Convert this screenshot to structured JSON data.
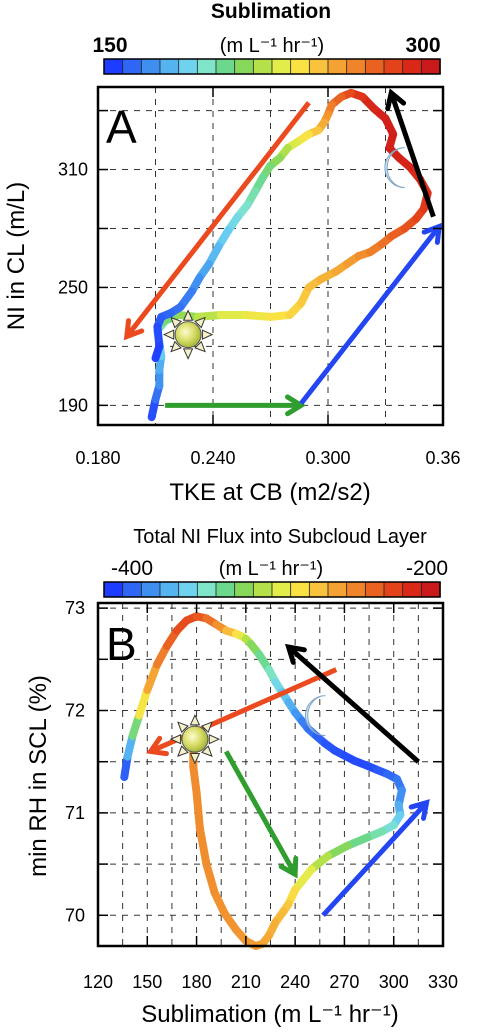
{
  "chart_data": [
    {
      "type": "line",
      "panel_label": "A",
      "colorbar": {
        "title": "Sublimation",
        "units": "(m L⁻¹ hr⁻¹)",
        "min_label": "150",
        "max_label": "300",
        "range": [
          150,
          300
        ],
        "colors": [
          "#1e3cff",
          "#2f66f5",
          "#3e8ff0",
          "#55b4f0",
          "#6fd3f0",
          "#7fe4c8",
          "#6cd88e",
          "#86d85a",
          "#b4e04a",
          "#e2ec4a",
          "#fbe244",
          "#f8c23c",
          "#f3a233",
          "#ef842b",
          "#ea6222",
          "#e3431b",
          "#d92818",
          "#c81a1a"
        ]
      },
      "xlabel": "TKE at CB (m2/s2)",
      "ylabel": "NI in CL (m/L)",
      "xlim": [
        0.18,
        0.36
      ],
      "ylim": [
        180,
        352
      ],
      "xticks": [
        0.18,
        0.24,
        0.3,
        0.36
      ],
      "xtick_labels": [
        "0.180",
        "0.240",
        "0.300",
        "0.36"
      ],
      "yticks": [
        190,
        250,
        310
      ],
      "ytick_labels": [
        "190",
        "250",
        "310"
      ],
      "ymidticks": [
        220,
        280,
        340
      ],
      "grid": true,
      "trajectory": {
        "x": [
          0.208,
          0.21,
          0.212,
          0.212,
          0.213,
          0.212,
          0.211,
          0.215,
          0.222,
          0.232,
          0.244,
          0.257,
          0.27,
          0.28,
          0.286,
          0.29,
          0.296,
          0.304,
          0.31,
          0.316,
          0.322,
          0.328,
          0.333,
          0.34,
          0.346,
          0.35,
          0.352,
          0.348,
          0.343,
          0.337,
          0.332,
          0.334,
          0.33,
          0.324,
          0.318,
          0.312,
          0.307,
          0.302,
          0.3,
          0.298,
          0.295,
          0.29,
          0.284,
          0.279,
          0.275,
          0.27,
          0.266,
          0.262,
          0.258,
          0.253,
          0.248,
          0.243,
          0.238,
          0.233,
          0.229,
          0.223,
          0.218,
          0.213,
          0.211,
          0.212,
          0.21
        ],
        "y": [
          184,
          193,
          200,
          208,
          215,
          222,
          228,
          233,
          236,
          235,
          236,
          236,
          235,
          236,
          242,
          250,
          254,
          258,
          262,
          266,
          268,
          272,
          276,
          280,
          285,
          290,
          298,
          305,
          311,
          316,
          321,
          328,
          336,
          341,
          347,
          349,
          347,
          343,
          338,
          334,
          330,
          328,
          324,
          321,
          316,
          312,
          306,
          299,
          292,
          286,
          279,
          271,
          262,
          255,
          248,
          240,
          237,
          235,
          230,
          220,
          214
        ],
        "c": [
          150,
          158,
          165,
          172,
          178,
          188,
          195,
          203,
          210,
          218,
          226,
          232,
          236,
          240,
          244,
          247,
          250,
          253,
          256,
          260,
          264,
          268,
          272,
          276,
          280,
          284,
          288,
          290,
          292,
          294,
          295,
          296,
          296,
          294,
          290,
          284,
          276,
          270,
          262,
          256,
          250,
          242,
          232,
          224,
          216,
          210,
          204,
          200,
          196,
          190,
          186,
          180,
          176,
          170,
          166,
          162,
          160,
          158,
          155,
          152,
          150
        ]
      },
      "arrows": [
        {
          "color": "#ea4a1e",
          "from": [
            0.29,
            344
          ],
          "to": [
            0.195,
            225
          ]
        },
        {
          "color": "#2f9e2f",
          "from": [
            0.215,
            190
          ],
          "to": [
            0.286,
            190
          ]
        },
        {
          "color": "#2446f2",
          "from": [
            0.286,
            191
          ],
          "to": [
            0.358,
            281
          ]
        },
        {
          "color": "#000000",
          "from": [
            0.355,
            286
          ],
          "to": [
            0.333,
            349
          ]
        }
      ],
      "sun": {
        "x": 0.227,
        "y": 226
      },
      "moon": {
        "x": 0.338,
        "y": 311
      }
    },
    {
      "type": "line",
      "panel_label": "B",
      "colorbar": {
        "title": "Total NI Flux into Subcloud Layer",
        "units": "(m L⁻¹ hr⁻¹)",
        "min_label": "-400",
        "max_label": "-200",
        "range": [
          -400,
          -200
        ],
        "colors": [
          "#1e3cff",
          "#2f66f5",
          "#3e8ff0",
          "#55b4f0",
          "#6fd3f0",
          "#7fe4c8",
          "#6cd88e",
          "#86d85a",
          "#b4e04a",
          "#e2ec4a",
          "#fbe244",
          "#f8c23c",
          "#f3a233",
          "#ef842b",
          "#ea6222",
          "#e3431b",
          "#d92818",
          "#c81a1a"
        ]
      },
      "xlabel": "Sublimation (m L⁻¹ hr⁻¹)",
      "ylabel": "min RH in SCL (%)",
      "xlim": [
        120,
        330
      ],
      "ylim": [
        69.7,
        73.05
      ],
      "xticks": [
        120,
        150,
        180,
        210,
        240,
        270,
        300,
        330
      ],
      "xtick_labels": [
        "120",
        "150",
        "180",
        "210",
        "240",
        "270",
        "300",
        "330"
      ],
      "yticks": [
        70,
        71,
        72,
        73
      ],
      "ytick_labels": [
        "70",
        "71",
        "72",
        "73"
      ],
      "ymidticks": [
        70.5,
        71.5,
        72.5
      ],
      "grid": true,
      "trajectory": {
        "x": [
          136,
          138,
          141,
          145,
          150,
          156,
          162,
          168,
          174,
          180,
          186,
          192,
          198,
          204,
          208,
          210,
          213,
          218,
          224,
          228,
          232,
          236,
          240,
          244,
          248,
          253,
          258,
          264,
          270,
          276,
          284,
          290,
          296,
          302,
          305,
          303,
          304,
          300,
          293,
          284,
          272,
          260,
          250,
          240,
          236,
          233,
          228,
          224,
          220,
          216,
          210,
          204,
          197,
          191,
          186,
          182,
          180,
          178,
          178,
          179
        ],
        "y": [
          71.35,
          71.55,
          71.75,
          71.95,
          72.2,
          72.45,
          72.63,
          72.78,
          72.88,
          72.92,
          72.9,
          72.84,
          72.78,
          72.75,
          72.72,
          72.7,
          72.65,
          72.55,
          72.4,
          72.28,
          72.18,
          72.08,
          71.98,
          71.9,
          71.82,
          71.75,
          71.68,
          71.61,
          71.56,
          71.51,
          71.46,
          71.42,
          71.38,
          71.33,
          71.22,
          71.08,
          70.98,
          70.88,
          70.82,
          70.76,
          70.68,
          70.58,
          70.45,
          70.25,
          70.11,
          70.04,
          69.93,
          69.8,
          69.72,
          69.7,
          69.75,
          69.86,
          70.02,
          70.22,
          70.5,
          70.85,
          71.2,
          71.45,
          71.63,
          71.75
        ],
        "c": [
          -400,
          -380,
          -350,
          -300,
          -270,
          -250,
          -240,
          -230,
          -225,
          -228,
          -235,
          -245,
          -260,
          -275,
          -290,
          -300,
          -312,
          -325,
          -335,
          -345,
          -355,
          -362,
          -370,
          -378,
          -383,
          -388,
          -392,
          -394,
          -395,
          -396,
          -396,
          -394,
          -390,
          -385,
          -380,
          -372,
          -360,
          -350,
          -340,
          -332,
          -325,
          -312,
          -300,
          -285,
          -275,
          -270,
          -265,
          -262,
          -260,
          -258,
          -256,
          -254,
          -253,
          -252,
          -251,
          -250,
          -250,
          -250,
          -250,
          -250
        ]
      },
      "arrows": [
        {
          "color": "#ea4a1e",
          "from": [
            265,
            72.4
          ],
          "to": [
            152,
            71.6
          ]
        },
        {
          "color": "#2f9e2f",
          "from": [
            198,
            71.6
          ],
          "to": [
            240,
            70.4
          ]
        },
        {
          "color": "#2446f2",
          "from": [
            257,
            70.0
          ],
          "to": [
            320,
            71.1
          ]
        },
        {
          "color": "#000000",
          "from": [
            315,
            71.5
          ],
          "to": [
            236,
            72.62
          ]
        }
      ],
      "sun": {
        "x": 179,
        "y": 71.72
      },
      "moon": {
        "x": 256,
        "y": 71.95
      }
    }
  ]
}
